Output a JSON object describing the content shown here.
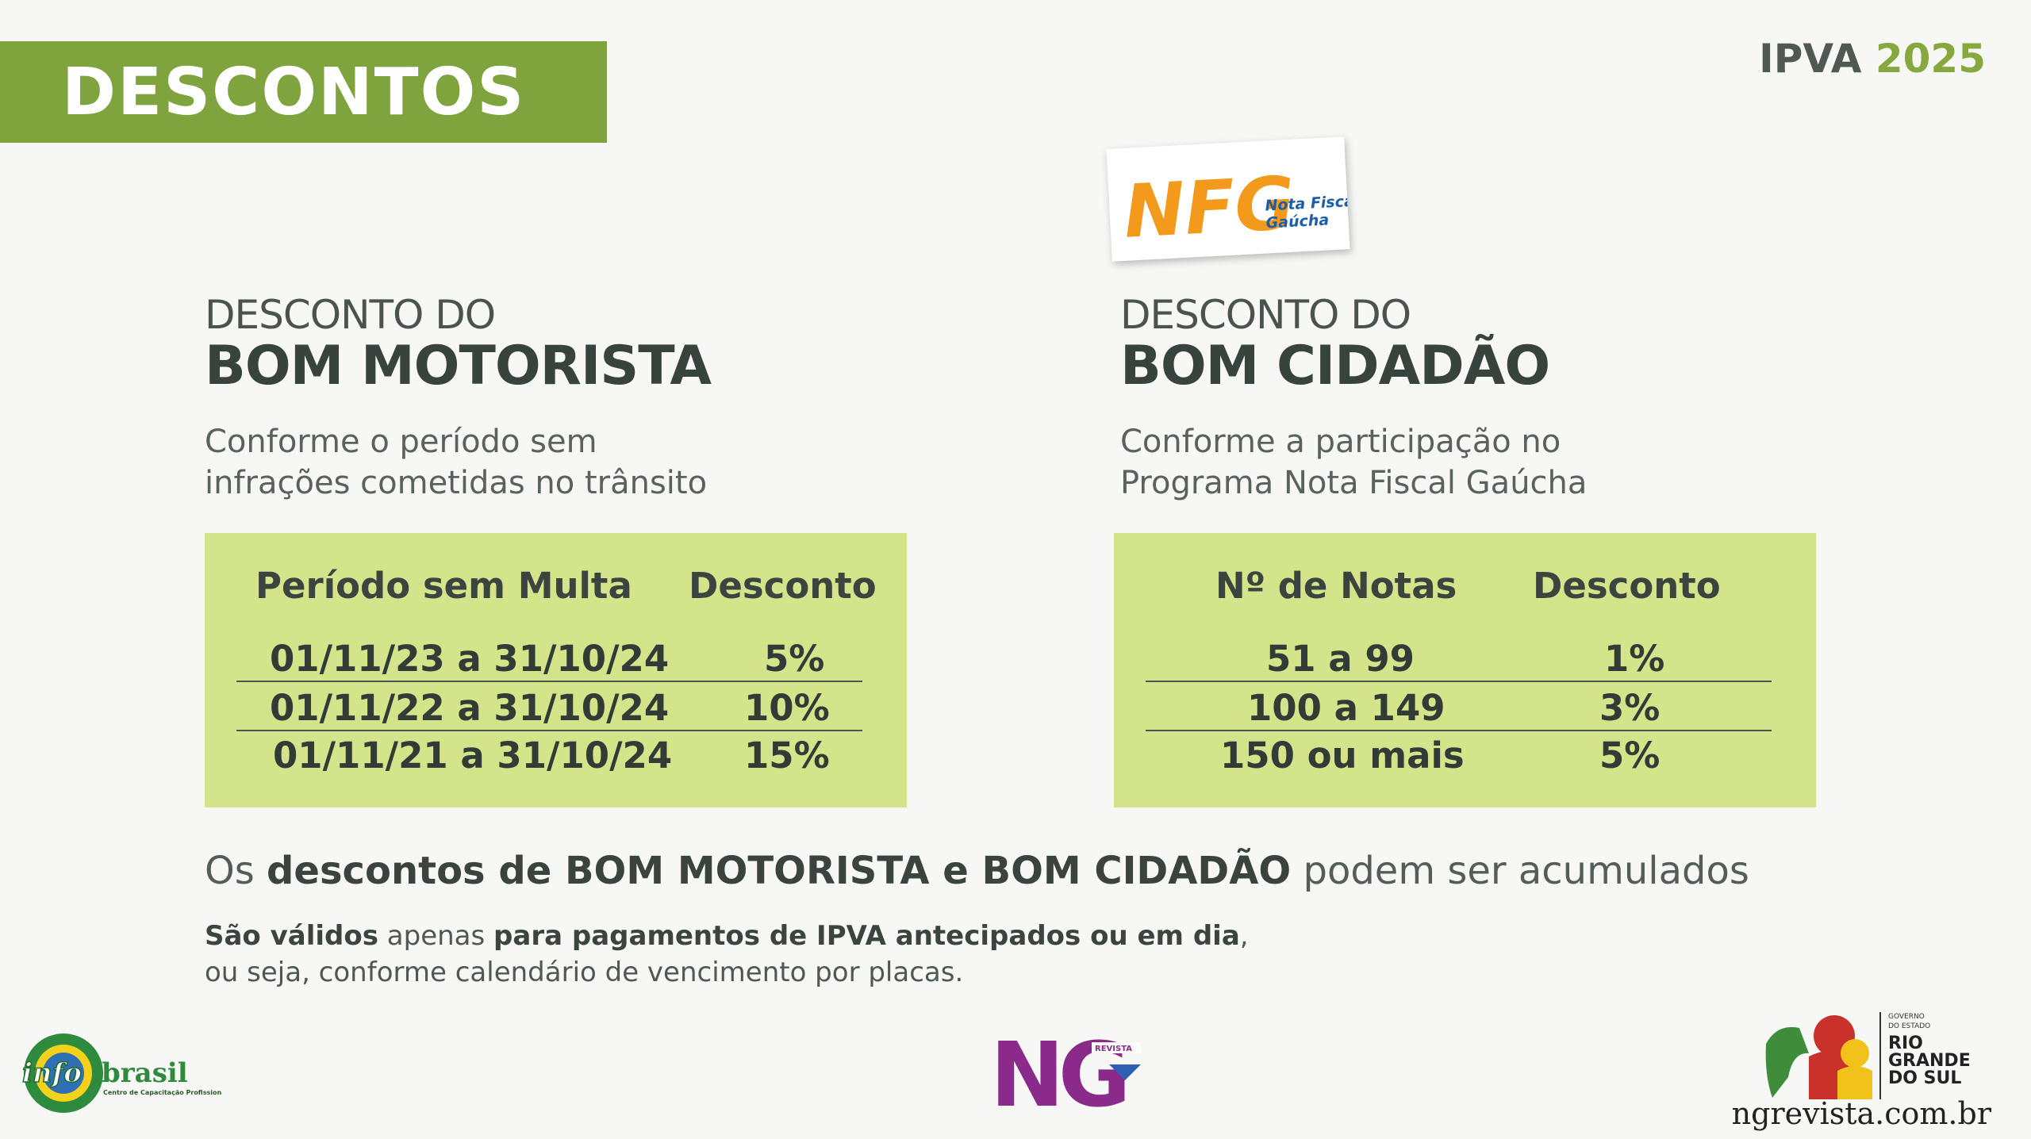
{
  "banner": {
    "title": "DESCONTOS"
  },
  "corner": {
    "prefix": "IPVA",
    "year": "2025"
  },
  "nfg_logo": {
    "letters": "NFG",
    "line1": "Nota Fiscal",
    "line2": "Gaúcha"
  },
  "left": {
    "kicker": "DESCONTO DO",
    "heading": "BOM MOTORISTA",
    "description": "Conforme o período sem\ninfrações cometidas no trânsito",
    "table": {
      "col1": "Período sem Multa",
      "col2": "Desconto",
      "rows": [
        {
          "period": "01/11/23 a 31/10/24",
          "discount": "5%"
        },
        {
          "period": "01/11/22 a 31/10/24",
          "discount": "10%"
        },
        {
          "period": "01/11/21 a 31/10/24",
          "discount": "15%"
        }
      ]
    }
  },
  "right": {
    "kicker": "DESCONTO DO",
    "heading": "BOM CIDADÃO",
    "description": "Conforme a participação no\nPrograma Nota Fiscal Gaúcha",
    "table": {
      "col1": "Nº de Notas",
      "col2": "Desconto",
      "rows": [
        {
          "notes": "51 a 99",
          "discount": "1%"
        },
        {
          "notes": "100 a 149",
          "discount": "3%"
        },
        {
          "notes": "150 ou mais",
          "discount": "5%"
        }
      ]
    }
  },
  "note1": {
    "a": "Os ",
    "b": "descontos de BOM MOTORISTA e BOM CIDADÃO",
    "c": " podem ser acumulados"
  },
  "note2": {
    "a": "São válidos",
    "b": " apenas ",
    "c": "para pagamentos de IPVA antecipados ou em dia",
    "d": ",",
    "e": "ou seja, conforme calendário de vencimento por placas."
  },
  "footer": {
    "infobrasil": {
      "name_a": "info",
      "name_b": "brasil",
      "tagline": "Centro de Capacitação Profissional"
    },
    "ng": {
      "letters": "NG",
      "badge": "REVISTA"
    },
    "rs": {
      "line1": "GOVERNO",
      "line2": "DO ESTADO",
      "line3": "RIO",
      "line4": "GRANDE",
      "line5": "DO SUL"
    },
    "site": "ngrevista.com.br"
  },
  "colors": {
    "banner": "#7fa33d",
    "box": "#d4e48b",
    "accent_year": "#86a83f",
    "ng_purple": "#8a2a8a"
  }
}
